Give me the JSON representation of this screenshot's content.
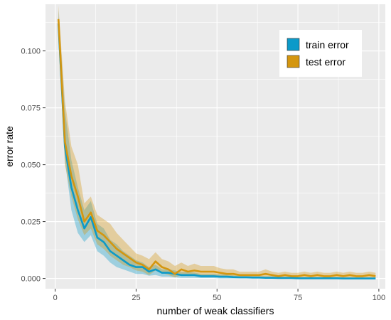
{
  "chart_data": {
    "type": "line",
    "title": "",
    "xlabel": "number of weak classifiers",
    "ylabel": "error rate",
    "xlim": [
      -3,
      102
    ],
    "ylim": [
      -0.0045,
      0.1205
    ],
    "x_ticks": [
      0,
      25,
      50,
      75,
      100
    ],
    "y_ticks": [
      0.0,
      0.025,
      0.05,
      0.075,
      0.1
    ],
    "x_tick_labels": [
      "0",
      "25",
      "50",
      "75",
      "100"
    ],
    "y_tick_labels": [
      "0.000",
      "0.025",
      "0.050",
      "0.075",
      "0.100"
    ],
    "grid": true,
    "legend_position": "top-right",
    "background": "#ebebeb",
    "grid_color": "#ffffff",
    "x": [
      1,
      3,
      5,
      7,
      9,
      11,
      13,
      15,
      17,
      19,
      21,
      23,
      25,
      27,
      29,
      31,
      33,
      35,
      37,
      39,
      41,
      43,
      45,
      47,
      49,
      51,
      53,
      55,
      57,
      59,
      61,
      63,
      65,
      67,
      69,
      71,
      73,
      75,
      77,
      79,
      81,
      83,
      85,
      87,
      89,
      91,
      93,
      95,
      97,
      99
    ],
    "series": [
      {
        "name": "train error",
        "color": "#0c9ac9",
        "values": [
          0.112,
          0.058,
          0.04,
          0.03,
          0.022,
          0.027,
          0.018,
          0.016,
          0.012,
          0.01,
          0.008,
          0.006,
          0.005,
          0.005,
          0.003,
          0.004,
          0.0025,
          0.0025,
          0.002,
          0.0015,
          0.0015,
          0.0015,
          0.001,
          0.001,
          0.001,
          0.0008,
          0.0008,
          0.0006,
          0.0005,
          0.0005,
          0.0004,
          0.0004,
          0.0003,
          0.0003,
          0.0002,
          0.0002,
          0.0002,
          0.0001,
          0.0001,
          0.0001,
          0.0001,
          0.0001,
          0.0001,
          0.0001,
          0.0,
          0.0,
          0.0,
          0.0,
          0.0,
          0.0
        ],
        "lower": [
          0.104,
          0.052,
          0.03,
          0.02,
          0.016,
          0.019,
          0.012,
          0.01,
          0.007,
          0.005,
          0.004,
          0.003,
          0.002,
          0.002,
          0.0012,
          0.0015,
          0.0008,
          0.0008,
          0.0005,
          0.0003,
          0.0003,
          0.0003,
          0.0002,
          0.0002,
          0.0002,
          0.0,
          0.0,
          0.0,
          0.0,
          0.0,
          0.0,
          0.0,
          0.0,
          0.0,
          0.0,
          0.0,
          0.0,
          0.0,
          0.0,
          0.0,
          0.0,
          0.0,
          0.0,
          0.0,
          0.0,
          0.0,
          0.0,
          0.0,
          0.0,
          0.0
        ],
        "upper": [
          0.118,
          0.074,
          0.052,
          0.04,
          0.03,
          0.034,
          0.024,
          0.022,
          0.017,
          0.015,
          0.012,
          0.01,
          0.008,
          0.007,
          0.005,
          0.006,
          0.004,
          0.004,
          0.0035,
          0.0028,
          0.0028,
          0.0026,
          0.002,
          0.002,
          0.002,
          0.0018,
          0.0018,
          0.0014,
          0.0012,
          0.0012,
          0.001,
          0.001,
          0.0009,
          0.0009,
          0.0007,
          0.0007,
          0.0007,
          0.0005,
          0.0005,
          0.0005,
          0.0005,
          0.0005,
          0.0005,
          0.0005,
          0.0004,
          0.0004,
          0.0004,
          0.0004,
          0.0004,
          0.0004
        ]
      },
      {
        "name": "test error",
        "color": "#d4960f",
        "values": [
          0.114,
          0.06,
          0.045,
          0.036,
          0.025,
          0.029,
          0.021,
          0.019,
          0.016,
          0.013,
          0.011,
          0.009,
          0.007,
          0.006,
          0.004,
          0.0075,
          0.005,
          0.004,
          0.002,
          0.004,
          0.003,
          0.0035,
          0.003,
          0.003,
          0.003,
          0.0025,
          0.002,
          0.002,
          0.0015,
          0.0015,
          0.0015,
          0.0015,
          0.002,
          0.0015,
          0.001,
          0.0015,
          0.001,
          0.001,
          0.0015,
          0.001,
          0.0015,
          0.001,
          0.001,
          0.0015,
          0.001,
          0.0015,
          0.001,
          0.001,
          0.0015,
          0.001
        ],
        "lower": [
          0.106,
          0.05,
          0.036,
          0.026,
          0.019,
          0.022,
          0.015,
          0.013,
          0.01,
          0.008,
          0.006,
          0.005,
          0.0035,
          0.003,
          0.0015,
          0.0035,
          0.0025,
          0.0015,
          0.0005,
          0.0015,
          0.001,
          0.0012,
          0.001,
          0.001,
          0.001,
          0.0008,
          0.0005,
          0.0005,
          0.0003,
          0.0003,
          0.0003,
          0.0003,
          0.0005,
          0.0003,
          0.0,
          0.0003,
          0.0,
          0.0,
          0.0003,
          0.0,
          0.0003,
          0.0,
          0.0,
          0.0003,
          0.0,
          0.0003,
          0.0,
          0.0,
          0.0003,
          0.0
        ],
        "upper": [
          0.12,
          0.078,
          0.058,
          0.05,
          0.033,
          0.036,
          0.028,
          0.026,
          0.024,
          0.02,
          0.017,
          0.014,
          0.011,
          0.01,
          0.0085,
          0.0115,
          0.0085,
          0.0075,
          0.0055,
          0.007,
          0.0055,
          0.0065,
          0.0055,
          0.0055,
          0.0055,
          0.0045,
          0.004,
          0.004,
          0.003,
          0.003,
          0.003,
          0.003,
          0.004,
          0.003,
          0.0025,
          0.003,
          0.0025,
          0.0025,
          0.003,
          0.0025,
          0.003,
          0.0025,
          0.0025,
          0.003,
          0.0025,
          0.003,
          0.0025,
          0.0025,
          0.003,
          0.0025
        ]
      }
    ]
  }
}
